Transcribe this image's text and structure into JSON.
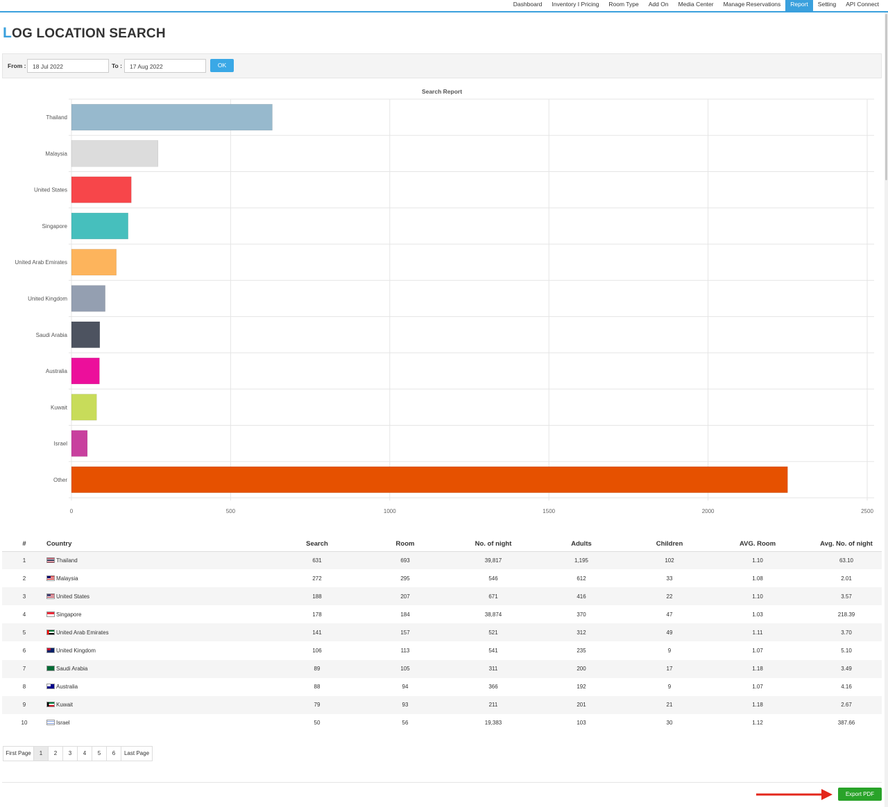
{
  "nav": {
    "items": [
      {
        "label": "Dashboard",
        "active": false
      },
      {
        "label": "Inventory I Pricing",
        "active": false
      },
      {
        "label": "Room Type",
        "active": false
      },
      {
        "label": "Add On",
        "active": false
      },
      {
        "label": "Media Center",
        "active": false
      },
      {
        "label": "Manage Reservations",
        "active": false
      },
      {
        "label": "Report",
        "active": true
      },
      {
        "label": "Setting",
        "active": false
      },
      {
        "label": "API Connect",
        "active": false
      }
    ]
  },
  "page": {
    "title_first": "L",
    "title_rest": "OG LOCATION SEARCH"
  },
  "filter": {
    "from_label": "From :",
    "from_value": "18 Jul 2022",
    "to_label": "To :",
    "to_value": "17 Aug 2022",
    "ok_label": "OK"
  },
  "chart_data": {
    "type": "bar",
    "orientation": "horizontal",
    "title": "Search Report",
    "categories": [
      "Thailand",
      "Malaysia",
      "United States",
      "Singapore",
      "United Arab Emirates",
      "United Kingdom",
      "Saudi Arabia",
      "Australia",
      "Kuwait",
      "Israel",
      "Other"
    ],
    "values": [
      631,
      272,
      188,
      178,
      141,
      106,
      89,
      88,
      79,
      50,
      2250
    ],
    "colors": [
      "#97b9cd",
      "#dcdcdc",
      "#f7464a",
      "#46bfbd",
      "#fdb45c",
      "#949fb1",
      "#4d5360",
      "#ec0f9b",
      "#c8dc5a",
      "#c8409e",
      "#e65100"
    ],
    "xlim": [
      0,
      2500
    ],
    "xticks": [
      "0",
      "500",
      "1000",
      "1500",
      "2000",
      "2500"
    ],
    "grid": true,
    "legend": "none"
  },
  "table": {
    "headers": [
      "#",
      "Country",
      "Search",
      "Room",
      "No. of night",
      "Adults",
      "Children",
      "AVG. Room",
      "Avg. No. of night"
    ],
    "rows": [
      {
        "n": "1",
        "country": "Thailand",
        "flag": "thailand-flag-icon",
        "search": "631",
        "room": "693",
        "nights": "39,817",
        "adults": "1,195",
        "children": "102",
        "avg_room": "1.10",
        "avg_nights": "63.10"
      },
      {
        "n": "2",
        "country": "Malaysia",
        "flag": "malaysia-flag-icon",
        "search": "272",
        "room": "295",
        "nights": "546",
        "adults": "612",
        "children": "33",
        "avg_room": "1.08",
        "avg_nights": "2.01"
      },
      {
        "n": "3",
        "country": "United States",
        "flag": "united-states-flag-icon",
        "search": "188",
        "room": "207",
        "nights": "671",
        "adults": "416",
        "children": "22",
        "avg_room": "1.10",
        "avg_nights": "3.57"
      },
      {
        "n": "4",
        "country": "Singapore",
        "flag": "singapore-flag-icon",
        "search": "178",
        "room": "184",
        "nights": "38,874",
        "adults": "370",
        "children": "47",
        "avg_room": "1.03",
        "avg_nights": "218.39"
      },
      {
        "n": "5",
        "country": "United Arab Emirates",
        "flag": "uae-flag-icon",
        "search": "141",
        "room": "157",
        "nights": "521",
        "adults": "312",
        "children": "49",
        "avg_room": "1.11",
        "avg_nights": "3.70"
      },
      {
        "n": "6",
        "country": "United Kingdom",
        "flag": "united-kingdom-flag-icon",
        "search": "106",
        "room": "113",
        "nights": "541",
        "adults": "235",
        "children": "9",
        "avg_room": "1.07",
        "avg_nights": "5.10"
      },
      {
        "n": "7",
        "country": "Saudi Arabia",
        "flag": "saudi-arabia-flag-icon",
        "search": "89",
        "room": "105",
        "nights": "311",
        "adults": "200",
        "children": "17",
        "avg_room": "1.18",
        "avg_nights": "3.49"
      },
      {
        "n": "8",
        "country": "Australia",
        "flag": "australia-flag-icon",
        "search": "88",
        "room": "94",
        "nights": "366",
        "adults": "192",
        "children": "9",
        "avg_room": "1.07",
        "avg_nights": "4.16"
      },
      {
        "n": "9",
        "country": "Kuwait",
        "flag": "kuwait-flag-icon",
        "search": "79",
        "room": "93",
        "nights": "211",
        "adults": "201",
        "children": "21",
        "avg_room": "1.18",
        "avg_nights": "2.67"
      },
      {
        "n": "10",
        "country": "Israel",
        "flag": "israel-flag-icon",
        "search": "50",
        "room": "56",
        "nights": "19,383",
        "adults": "103",
        "children": "30",
        "avg_room": "1.12",
        "avg_nights": "387.66"
      }
    ]
  },
  "pagination": {
    "first_label": "First Page",
    "pages": [
      "1",
      "2",
      "3",
      "4",
      "5",
      "6"
    ],
    "current": "1",
    "last_label": "Last Page"
  },
  "export": {
    "label": "Export PDF",
    "button_color": "#29a329",
    "arrow_color": "#e3261b"
  },
  "colors": {
    "accent": "#3aa0dd"
  }
}
